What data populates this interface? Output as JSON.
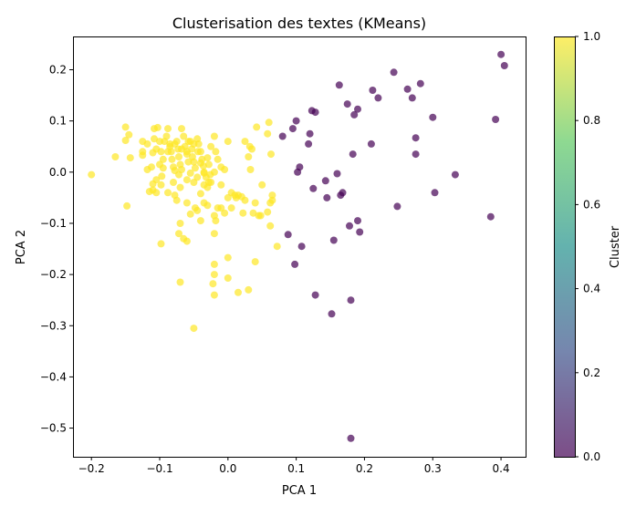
{
  "chart_data": {
    "type": "scatter",
    "title": "Clusterisation des textes (KMeans)",
    "xlabel": "PCA 1",
    "ylabel": "PCA 2",
    "xlim": [
      -0.227,
      0.436
    ],
    "ylim": [
      -0.556,
      0.265
    ],
    "xticks": [
      -0.2,
      -0.1,
      0.0,
      0.1,
      0.2,
      0.3,
      0.4
    ],
    "xtick_labels": [
      "−0.2",
      "−0.1",
      "0.0",
      "0.1",
      "0.2",
      "0.3",
      "0.4"
    ],
    "yticks": [
      -0.5,
      -0.4,
      -0.3,
      -0.2,
      -0.1,
      0.0,
      0.1,
      0.2
    ],
    "ytick_labels": [
      "−0.5",
      "−0.4",
      "−0.3",
      "−0.2",
      "−0.1",
      "0.0",
      "0.1",
      "0.2"
    ],
    "grid": false,
    "marker_alpha": 0.7,
    "colorbar": {
      "label": "Cluster",
      "range": [
        0.0,
        1.0
      ],
      "ticks": [
        0.0,
        0.2,
        0.4,
        0.6,
        0.8,
        1.0
      ],
      "tick_labels": [
        "0.0",
        "0.2",
        "0.4",
        "0.6",
        "0.8",
        "1.0"
      ],
      "colormap": "viridis",
      "stops": [
        "#440154",
        "#3b528b",
        "#21918c",
        "#5ec962",
        "#fde725"
      ]
    },
    "series": [
      {
        "cluster": 1,
        "color": "#fde725",
        "points": [
          [
            -0.2,
            -0.005
          ],
          [
            -0.165,
            0.03
          ],
          [
            -0.15,
            0.088
          ],
          [
            -0.15,
            0.062
          ],
          [
            -0.145,
            0.073
          ],
          [
            -0.143,
            0.028
          ],
          [
            -0.148,
            -0.066
          ],
          [
            -0.125,
            0.06
          ],
          [
            -0.118,
            0.055
          ],
          [
            -0.125,
            0.04
          ],
          [
            -0.125,
            0.033
          ],
          [
            -0.118,
            0.005
          ],
          [
            -0.112,
            0.01
          ],
          [
            -0.11,
            0.038
          ],
          [
            -0.108,
            0.085
          ],
          [
            -0.103,
            0.087
          ],
          [
            -0.108,
            0.065
          ],
          [
            -0.105,
            0.045
          ],
          [
            -0.1,
            0.06
          ],
          [
            -0.098,
            0.04
          ],
          [
            -0.095,
            0.025
          ],
          [
            -0.1,
            0.015
          ],
          [
            -0.097,
            -0.008
          ],
          [
            -0.105,
            -0.015
          ],
          [
            -0.11,
            -0.023
          ],
          [
            -0.115,
            -0.038
          ],
          [
            -0.105,
            -0.04
          ],
          [
            -0.11,
            -0.035
          ],
          [
            -0.098,
            -0.025
          ],
          [
            -0.093,
            0.06
          ],
          [
            -0.09,
            0.07
          ],
          [
            -0.088,
            0.085
          ],
          [
            -0.085,
            0.055
          ],
          [
            -0.083,
            0.04
          ],
          [
            -0.082,
            0.025
          ],
          [
            -0.08,
            0.01
          ],
          [
            -0.078,
            0.003
          ],
          [
            -0.088,
            0.04
          ],
          [
            -0.088,
            -0.04
          ],
          [
            -0.08,
            -0.02
          ],
          [
            -0.075,
            0.06
          ],
          [
            -0.073,
            0.045
          ],
          [
            -0.072,
            0.03
          ],
          [
            -0.07,
            0.015
          ],
          [
            -0.068,
            0.005
          ],
          [
            -0.065,
            0.07
          ],
          [
            -0.063,
            0.05
          ],
          [
            -0.06,
            0.035
          ],
          [
            -0.058,
            0.02
          ],
          [
            -0.068,
            0.085
          ],
          [
            -0.055,
            0.06
          ],
          [
            -0.053,
            0.045
          ],
          [
            -0.052,
            0.03
          ],
          [
            -0.05,
            0.02
          ],
          [
            -0.048,
            0.008
          ],
          [
            -0.045,
            0.065
          ],
          [
            -0.043,
            0.055
          ],
          [
            -0.04,
            0.04
          ],
          [
            -0.038,
            0.025
          ],
          [
            -0.036,
            0.012
          ],
          [
            -0.035,
            0.0
          ],
          [
            -0.032,
            -0.01
          ],
          [
            -0.03,
            0.028
          ],
          [
            -0.028,
            0.015
          ],
          [
            -0.026,
            -0.005
          ],
          [
            -0.025,
            0.05
          ],
          [
            -0.02,
            0.07
          ],
          [
            -0.018,
            0.04
          ],
          [
            -0.02,
            0.0
          ],
          [
            -0.025,
            -0.02
          ],
          [
            -0.035,
            -0.025
          ],
          [
            -0.045,
            -0.01
          ],
          [
            -0.05,
            -0.02
          ],
          [
            -0.06,
            -0.015
          ],
          [
            -0.072,
            -0.005
          ],
          [
            -0.078,
            -0.045
          ],
          [
            -0.075,
            -0.055
          ],
          [
            -0.07,
            -0.03
          ],
          [
            -0.06,
            -0.06
          ],
          [
            -0.045,
            -0.075
          ],
          [
            -0.04,
            -0.095
          ],
          [
            -0.03,
            -0.065
          ],
          [
            -0.035,
            -0.06
          ],
          [
            -0.02,
            -0.085
          ],
          [
            -0.018,
            -0.095
          ],
          [
            -0.015,
            -0.07
          ],
          [
            -0.01,
            -0.025
          ],
          [
            -0.015,
            0.025
          ],
          [
            -0.01,
            0.01
          ],
          [
            -0.005,
            0.005
          ],
          [
            0.0,
            0.06
          ],
          [
            0.005,
            -0.04
          ],
          [
            0.0,
            -0.05
          ],
          [
            0.01,
            -0.045
          ],
          [
            0.012,
            -0.05
          ],
          [
            0.015,
            -0.045
          ],
          [
            0.02,
            -0.048
          ],
          [
            0.025,
            -0.055
          ],
          [
            0.022,
            -0.08
          ],
          [
            0.005,
            -0.07
          ],
          [
            0.025,
            0.06
          ],
          [
            0.03,
            0.03
          ],
          [
            0.032,
            0.05
          ],
          [
            0.035,
            0.045
          ],
          [
            0.033,
            0.005
          ],
          [
            0.037,
            -0.08
          ],
          [
            0.04,
            -0.06
          ],
          [
            0.048,
            -0.085
          ],
          [
            0.05,
            -0.025
          ],
          [
            0.042,
            0.088
          ],
          [
            0.058,
            0.075
          ],
          [
            0.06,
            0.097
          ],
          [
            0.063,
            0.035
          ],
          [
            0.062,
            -0.06
          ],
          [
            0.065,
            -0.045
          ],
          [
            0.065,
            -0.055
          ],
          [
            0.058,
            -0.078
          ],
          [
            0.062,
            -0.105
          ],
          [
            0.045,
            -0.085
          ],
          [
            -0.005,
            -0.08
          ],
          [
            -0.01,
            -0.07
          ],
          [
            -0.028,
            -0.02
          ],
          [
            -0.03,
            -0.03
          ],
          [
            -0.04,
            -0.042
          ],
          [
            -0.048,
            -0.07
          ],
          [
            -0.055,
            -0.082
          ],
          [
            -0.065,
            -0.13
          ],
          [
            -0.06,
            -0.135
          ],
          [
            -0.07,
            -0.1
          ],
          [
            -0.072,
            -0.12
          ],
          [
            -0.098,
            -0.14
          ],
          [
            0.04,
            -0.175
          ],
          [
            0.072,
            -0.145
          ],
          [
            -0.02,
            -0.12
          ],
          [
            -0.02,
            -0.18
          ],
          [
            -0.02,
            -0.2
          ],
          [
            0.0,
            -0.167
          ],
          [
            0.0,
            -0.207
          ],
          [
            -0.022,
            -0.218
          ],
          [
            -0.02,
            -0.24
          ],
          [
            -0.07,
            -0.215
          ],
          [
            0.015,
            -0.235
          ],
          [
            0.03,
            -0.23
          ],
          [
            -0.05,
            -0.305
          ],
          [
            -0.035,
            -0.002
          ],
          [
            -0.055,
            -0.002
          ],
          [
            -0.085,
            0.05
          ],
          [
            -0.095,
            0.008
          ],
          [
            -0.078,
            0.055
          ],
          [
            -0.068,
            0.045
          ],
          [
            -0.06,
            0.04
          ],
          [
            -0.058,
            0.06
          ],
          [
            -0.05,
            0.055
          ],
          [
            -0.044,
            0.04
          ],
          [
            -0.04,
            0.018
          ]
        ]
      },
      {
        "cluster": 0,
        "color": "#440154",
        "points": [
          [
            0.08,
            0.07
          ],
          [
            0.095,
            0.085
          ],
          [
            0.1,
            0.1
          ],
          [
            0.102,
            0.0
          ],
          [
            0.105,
            0.01
          ],
          [
            0.12,
            0.075
          ],
          [
            0.118,
            0.055
          ],
          [
            0.123,
            0.12
          ],
          [
            0.128,
            0.117
          ],
          [
            0.125,
            -0.032
          ],
          [
            0.088,
            -0.122
          ],
          [
            0.108,
            -0.145
          ],
          [
            0.098,
            -0.18
          ],
          [
            0.128,
            -0.24
          ],
          [
            0.145,
            -0.05
          ],
          [
            0.143,
            -0.017
          ],
          [
            0.155,
            -0.133
          ],
          [
            0.16,
            -0.003
          ],
          [
            0.163,
            0.17
          ],
          [
            0.165,
            -0.045
          ],
          [
            0.168,
            -0.04
          ],
          [
            0.175,
            0.133
          ],
          [
            0.178,
            -0.105
          ],
          [
            0.18,
            -0.25
          ],
          [
            0.183,
            0.035
          ],
          [
            0.185,
            0.112
          ],
          [
            0.19,
            0.123
          ],
          [
            0.19,
            -0.095
          ],
          [
            0.193,
            -0.117
          ],
          [
            0.21,
            0.055
          ],
          [
            0.212,
            0.16
          ],
          [
            0.22,
            0.145
          ],
          [
            0.243,
            0.195
          ],
          [
            0.248,
            -0.067
          ],
          [
            0.263,
            0.162
          ],
          [
            0.27,
            0.145
          ],
          [
            0.275,
            0.067
          ],
          [
            0.275,
            0.035
          ],
          [
            0.282,
            0.173
          ],
          [
            0.3,
            0.107
          ],
          [
            0.303,
            -0.04
          ],
          [
            0.333,
            -0.005
          ],
          [
            0.152,
            -0.277
          ],
          [
            0.18,
            -0.52
          ],
          [
            0.385,
            -0.087
          ],
          [
            0.392,
            0.103
          ],
          [
            0.4,
            0.23
          ],
          [
            0.405,
            0.208
          ]
        ]
      }
    ]
  }
}
